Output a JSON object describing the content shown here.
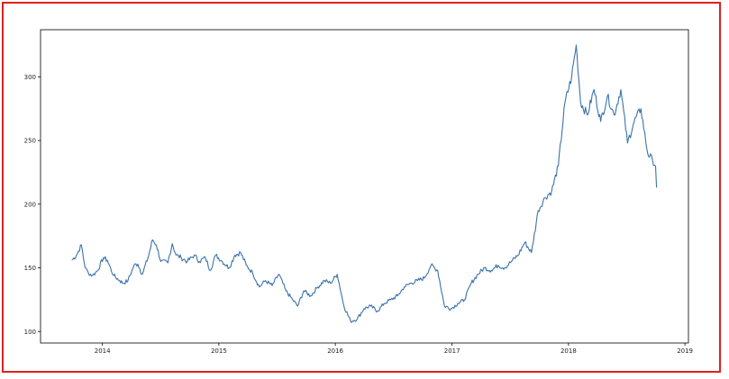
{
  "colors": {
    "frame": "#e02020",
    "line": "#3a73aa",
    "axis": "#000000"
  },
  "chart_data": {
    "type": "line",
    "title": "",
    "xlabel": "",
    "ylabel": "",
    "x_ticks": [
      "2014",
      "2015",
      "2016",
      "2017",
      "2018",
      "2019"
    ],
    "y_ticks": [
      "100",
      "150",
      "200",
      "250",
      "300"
    ],
    "xlim": [
      "2013-06-21",
      "2019-01-12"
    ],
    "ylim": [
      91,
      337
    ],
    "grid": false,
    "legend": "none",
    "series": [
      {
        "color": "#3a73aa",
        "x": [
          "2013-09-27",
          "2013-10-12",
          "2013-10-27",
          "2013-11-08",
          "2013-11-18",
          "2013-12-01",
          "2013-12-17",
          "2014-01-04",
          "2014-01-16",
          "2014-02-05",
          "2014-02-24",
          "2014-03-07",
          "2014-03-22",
          "2014-04-10",
          "2014-04-22",
          "2014-05-06",
          "2014-05-24",
          "2014-06-07",
          "2014-06-19",
          "2014-07-03",
          "2014-07-25",
          "2014-08-08",
          "2014-08-20",
          "2014-09-05",
          "2014-09-24",
          "2014-10-16",
          "2014-11-01",
          "2014-11-20",
          "2014-12-05",
          "2014-12-22",
          "2015-01-12",
          "2015-02-02",
          "2015-02-20",
          "2015-03-10",
          "2015-03-28",
          "2015-04-17",
          "2015-05-08",
          "2015-05-27",
          "2015-06-17",
          "2015-07-08",
          "2015-07-30",
          "2015-08-20",
          "2015-09-05",
          "2015-09-24",
          "2015-10-16",
          "2015-11-07",
          "2015-11-28",
          "2015-12-17",
          "2016-01-07",
          "2016-01-28",
          "2016-02-18",
          "2016-03-10",
          "2016-03-31",
          "2016-04-21",
          "2016-05-12",
          "2016-06-02",
          "2016-06-23",
          "2016-07-14",
          "2016-08-04",
          "2016-08-25",
          "2016-09-15",
          "2016-10-06",
          "2016-10-27",
          "2016-11-17",
          "2016-12-08",
          "2016-12-29",
          "2017-01-19",
          "2017-02-09",
          "2017-03-02",
          "2017-03-23",
          "2017-04-13",
          "2017-05-04",
          "2017-05-25",
          "2017-06-15",
          "2017-07-06",
          "2017-07-27",
          "2017-08-17",
          "2017-09-07",
          "2017-09-28",
          "2017-10-19",
          "2017-11-09",
          "2017-11-30",
          "2017-12-21",
          "2018-01-11",
          "2018-01-25",
          "2018-02-08",
          "2018-03-01",
          "2018-03-22",
          "2018-04-12",
          "2018-05-03",
          "2018-05-24",
          "2018-06-14",
          "2018-07-05",
          "2018-07-26",
          "2018-08-16",
          "2018-09-06",
          "2018-09-21",
          "2018-10-01",
          "2018-10-04"
        ],
        "y": [
          156,
          160,
          168,
          150,
          146,
          144,
          148,
          158,
          156,
          144,
          140,
          138,
          140,
          152,
          153,
          145,
          158,
          172,
          168,
          155,
          154,
          169,
          160,
          158,
          155,
          160,
          155,
          158,
          148,
          160,
          155,
          150,
          160,
          162,
          152,
          146,
          135,
          140,
          136,
          145,
          132,
          125,
          120,
          132,
          128,
          135,
          140,
          138,
          145,
          120,
          108,
          110,
          118,
          120,
          116,
          122,
          125,
          128,
          135,
          138,
          140,
          142,
          152,
          148,
          120,
          118,
          122,
          125,
          138,
          145,
          150,
          148,
          152,
          150,
          155,
          160,
          170,
          162,
          195,
          205,
          210,
          230,
          280,
          300,
          325,
          280,
          270,
          290,
          265,
          285,
          270,
          290,
          248,
          265,
          275,
          240,
          235,
          230,
          213
        ]
      }
    ]
  }
}
